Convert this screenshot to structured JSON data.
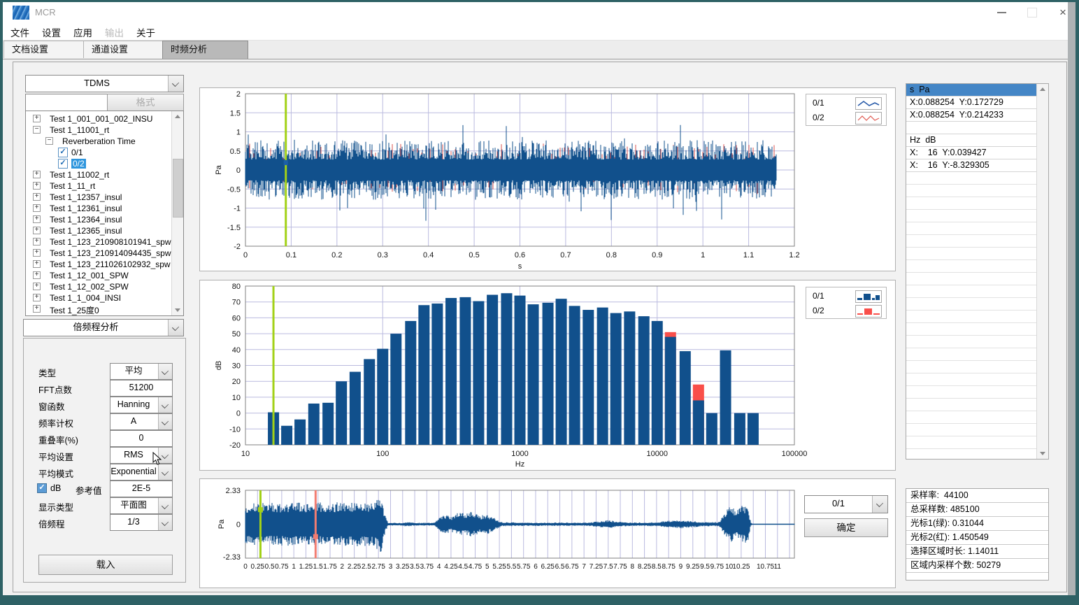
{
  "window": {
    "title": "MCR"
  },
  "menu": {
    "items": [
      {
        "label": "文件",
        "enabled": true
      },
      {
        "label": "设置",
        "enabled": true
      },
      {
        "label": "应用",
        "enabled": true
      },
      {
        "label": "输出",
        "enabled": false
      },
      {
        "label": "关于",
        "enabled": true
      }
    ]
  },
  "tabs": [
    {
      "label": "文档设置",
      "active": false
    },
    {
      "label": "通道设置",
      "active": false
    },
    {
      "label": "时频分析",
      "active": true
    }
  ],
  "left": {
    "format_combo_value": "TDMS",
    "filter_input_value": "",
    "format_button_label": "格式",
    "tree": {
      "items": [
        {
          "label": "Test 1_001_001_002_INSU",
          "level": 0,
          "glyph": "plus",
          "selected": false
        },
        {
          "label": "Test 1_11001_rt",
          "level": 0,
          "glyph": "minus",
          "selected": false
        },
        {
          "label": "Reverberation Time",
          "level": 1,
          "glyph": "minus",
          "selected": false
        },
        {
          "label": "0/1",
          "level": 2,
          "glyph": "check",
          "selected": false
        },
        {
          "label": "0/2",
          "level": 2,
          "glyph": "check",
          "selected": true
        },
        {
          "label": "Test 1_11002_rt",
          "level": 0,
          "glyph": "plus",
          "selected": false
        },
        {
          "label": "Test 1_11_rt",
          "level": 0,
          "glyph": "plus",
          "selected": false
        },
        {
          "label": "Test 1_12357_insul",
          "level": 0,
          "glyph": "plus",
          "selected": false
        },
        {
          "label": "Test 1_12361_insul",
          "level": 0,
          "glyph": "plus",
          "selected": false
        },
        {
          "label": "Test 1_12364_insul",
          "level": 0,
          "glyph": "plus",
          "selected": false
        },
        {
          "label": "Test 1_12365_insul",
          "level": 0,
          "glyph": "plus",
          "selected": false
        },
        {
          "label": "Test 1_123_210908101941_spw",
          "level": 0,
          "glyph": "plus",
          "selected": false
        },
        {
          "label": "Test 1_123_210914094435_spw",
          "level": 0,
          "glyph": "plus",
          "selected": false
        },
        {
          "label": "Test 1_123_211026102932_spw",
          "level": 0,
          "glyph": "plus",
          "selected": false
        },
        {
          "label": "Test 1_12_001_SPW",
          "level": 0,
          "glyph": "plus",
          "selected": false
        },
        {
          "label": "Test 1_12_002_SPW",
          "level": 0,
          "glyph": "plus",
          "selected": false
        },
        {
          "label": "Test 1_1_004_INSI",
          "level": 0,
          "glyph": "plus",
          "selected": false
        },
        {
          "label": "Test 1_25度0",
          "level": 0,
          "glyph": "plus",
          "selected": false
        }
      ]
    },
    "analysis_combo_value": "倍频程分析",
    "form": {
      "rows": [
        {
          "label": "类型",
          "value": "平均",
          "type": "combo"
        },
        {
          "label": "FFT点数",
          "value": "51200",
          "type": "input"
        },
        {
          "label": "窗函数",
          "value": "Hanning",
          "type": "combo"
        },
        {
          "label": "频率计权",
          "value": "A",
          "type": "combo"
        },
        {
          "label": "重叠率(%)",
          "value": "0",
          "type": "input"
        },
        {
          "label": "平均设置",
          "value": "RMS",
          "type": "combo"
        },
        {
          "label": "平均模式",
          "value": "Exponential",
          "type": "combo"
        },
        {
          "label": "dB",
          "label2": "参考值",
          "value": "2E-5",
          "type": "checkbox-input",
          "checked": true
        },
        {
          "label": "显示类型",
          "value": "平面图",
          "type": "combo"
        },
        {
          "label": "倍频程",
          "value": "1/3",
          "type": "combo"
        }
      ],
      "load_button_label": "载入"
    }
  },
  "legend_time": {
    "items": [
      {
        "label": "0/1",
        "color": "#2a5caa"
      },
      {
        "label": "0/2",
        "color": "#e05b52"
      }
    ]
  },
  "legend_bar": {
    "items": [
      {
        "label": "0/1",
        "color": "#11508c"
      },
      {
        "label": "0/2",
        "color": "#f94f4a"
      }
    ]
  },
  "bottom_controls": {
    "channel_combo_value": "0/1",
    "confirm_button_label": "确定"
  },
  "cursor_list": {
    "rows": [
      "s  Pa",
      "X:0.088254  Y:0.172729",
      "X:0.088254  Y:0.214233",
      "",
      "Hz  dB",
      "X:    16  Y:0.039427",
      "X:    16  Y:-8.329305"
    ],
    "selected_index": 0
  },
  "stats": {
    "rows": [
      "采样率:  44100",
      "总采样数: 485100",
      "光标1(绿): 0.31044",
      "光标2(红): 1.450549",
      "选择区域时长: 1.14011",
      "区域内采样个数: 50279"
    ]
  },
  "chart_data": [
    {
      "id": "time_waveform",
      "type": "line",
      "xlabel": "s",
      "ylabel": "Pa",
      "xlim": [
        0,
        1.2
      ],
      "ylim": [
        -2,
        2
      ],
      "xticks": [
        "0",
        "0.1",
        "0.2",
        "0.3",
        "0.4",
        "0.5",
        "0.6",
        "0.7",
        "0.8",
        "0.9",
        "1",
        "1.1",
        "1.2"
      ],
      "yticks": [
        "2",
        "1.5",
        "1",
        "0.5",
        "0",
        "-0.5",
        "-1",
        "-1.5",
        "-2"
      ],
      "series": [
        {
          "name": "0/1",
          "color": "#11508c"
        },
        {
          "name": "0/2",
          "color": "#d9534f"
        }
      ],
      "signal": {
        "t_end": 1.16,
        "rms_amplitude": 0.78,
        "peak": 1.7,
        "description": "broadband noise"
      },
      "cursor": {
        "x": 0.088254,
        "color": "#a2d117",
        "markers_y": [
          0.172729,
          0.214233
        ]
      },
      "grid": true
    },
    {
      "id": "third_octave_spectrum",
      "type": "bar",
      "xlabel": "Hz",
      "ylabel": "dB",
      "xscale": "log",
      "xlim": [
        10,
        100000
      ],
      "ylim": [
        -20,
        80
      ],
      "xticks": [
        "10",
        "100",
        "1000",
        "10000",
        "100000"
      ],
      "yticks": [
        "80",
        "70",
        "60",
        "50",
        "40",
        "30",
        "20",
        "10",
        "0",
        "-10",
        "-20"
      ],
      "categories": [
        16,
        20,
        25,
        31.5,
        40,
        50,
        63,
        80,
        100,
        125,
        160,
        200,
        250,
        315,
        400,
        500,
        630,
        800,
        1000,
        1250,
        1600,
        2000,
        2500,
        3150,
        4000,
        5000,
        6300,
        8000,
        10000,
        12500,
        16000,
        20000,
        25000,
        31500,
        40000,
        50000
      ],
      "series": [
        {
          "name": "0/1",
          "color": "#11508c",
          "values": [
            0.5,
            -8,
            -4,
            6,
            6.5,
            20,
            26,
            34,
            40.5,
            50,
            58,
            68,
            69,
            72.5,
            73,
            70.5,
            74.5,
            75.5,
            74,
            68.5,
            69.5,
            72,
            67.5,
            65,
            66.5,
            63,
            64,
            61,
            58,
            48,
            39,
            8,
            0,
            39.5,
            0,
            0
          ]
        },
        {
          "name": "0/2",
          "color": "#f94f4a",
          "visible_points": [
            [
              12500,
              51
            ],
            [
              20000,
              18
            ]
          ]
        }
      ],
      "cursor": {
        "x": 16,
        "color": "#a2d117"
      },
      "grid": true
    },
    {
      "id": "overview_waveform",
      "type": "line",
      "xlabel": "",
      "ylabel": "Pa",
      "xlim": [
        0,
        11.35
      ],
      "ylim": [
        -2.33,
        2.33
      ],
      "xticks": [
        0,
        0.25,
        0.5,
        0.75,
        1,
        1.25,
        1.5,
        1.75,
        2,
        2.25,
        2.5,
        2.75,
        3,
        3.25,
        3.5,
        3.75,
        4,
        4.25,
        4.5,
        4.75,
        5,
        5.25,
        5.5,
        5.75,
        6,
        6.25,
        6.5,
        6.75,
        7,
        7.25,
        7.5,
        7.75,
        8,
        8.25,
        8.5,
        8.75,
        9,
        9.25,
        9.5,
        9.75,
        10,
        10.25,
        10.75,
        11
      ],
      "yticks": [
        "2.33",
        "0",
        "-2.33"
      ],
      "grid_step_x": 0.25,
      "series": [
        {
          "name": "0/1",
          "color": "#11508c"
        }
      ],
      "envelope": [
        [
          0,
          0.62
        ],
        [
          2.7,
          0.66
        ],
        [
          2.78,
          1.0
        ],
        [
          2.88,
          0.3
        ],
        [
          2.95,
          0.05
        ],
        [
          3.2,
          0.04
        ],
        [
          3.35,
          0.07
        ],
        [
          3.5,
          0.04
        ],
        [
          3.9,
          0.05
        ],
        [
          4.0,
          0.18
        ],
        [
          4.1,
          0.32
        ],
        [
          4.25,
          0.22
        ],
        [
          4.4,
          0.38
        ],
        [
          4.55,
          0.3
        ],
        [
          4.7,
          0.38
        ],
        [
          4.85,
          0.25
        ],
        [
          5.0,
          0.3
        ],
        [
          5.15,
          0.18
        ],
        [
          5.3,
          0.06
        ],
        [
          6.0,
          0.05
        ],
        [
          6.5,
          0.05
        ],
        [
          7.0,
          0.05
        ],
        [
          7.3,
          0.08
        ],
        [
          7.5,
          0.12
        ],
        [
          7.7,
          0.08
        ],
        [
          8.0,
          0.05
        ],
        [
          8.5,
          0.06
        ],
        [
          8.7,
          0.1
        ],
        [
          9.0,
          0.12
        ],
        [
          9.2,
          0.1
        ],
        [
          9.5,
          0.06
        ],
        [
          9.8,
          0.07
        ],
        [
          9.95,
          0.45
        ],
        [
          10.05,
          0.55
        ],
        [
          10.15,
          0.4
        ],
        [
          10.25,
          0.55
        ],
        [
          10.38,
          0.6
        ],
        [
          10.45,
          0.05
        ],
        [
          10.5,
          0.012
        ],
        [
          11.35,
          0.012
        ]
      ],
      "cursors": [
        {
          "x": 0.31044,
          "color": "#a2d117",
          "marker_y": 1.0
        },
        {
          "x": 1.450549,
          "color": "#f27d72",
          "marker_y": -0.85
        }
      ]
    }
  ]
}
